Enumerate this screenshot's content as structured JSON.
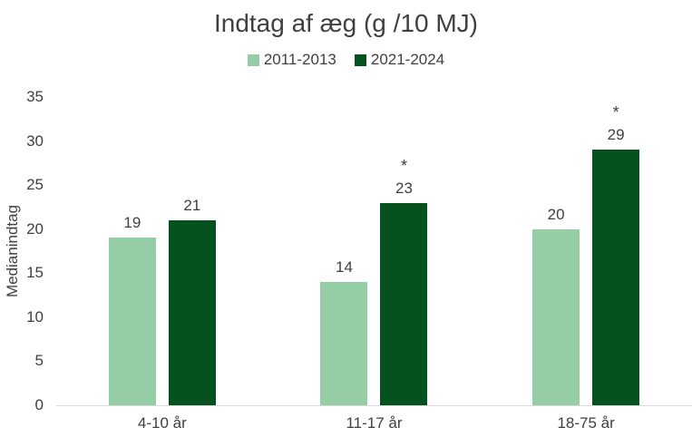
{
  "chart_data": {
    "type": "bar",
    "title": "Indtag af æg (g /10 MJ)",
    "ylabel": "Medianindtag",
    "xlabel": "",
    "categories": [
      "4-10 år",
      "11-17 år",
      "18-75 år"
    ],
    "series": [
      {
        "name": "2011-2013",
        "color": "#95CEA6",
        "values": [
          19,
          14,
          20
        ],
        "markers": [
          "",
          "",
          ""
        ]
      },
      {
        "name": "2021-2024",
        "color": "#05521F",
        "values": [
          21,
          23,
          29
        ],
        "markers": [
          "",
          "*",
          "*"
        ]
      }
    ],
    "ylim": [
      0,
      35
    ],
    "yticks": [
      0,
      5,
      10,
      15,
      20,
      25,
      30,
      35
    ],
    "grid": false,
    "legend_position": "top"
  },
  "colors": {
    "text": "#404040",
    "axis_line": "#D9D9D9",
    "background": "#FFFFFF",
    "series_light": "#95CEA6",
    "series_dark": "#05521F"
  }
}
